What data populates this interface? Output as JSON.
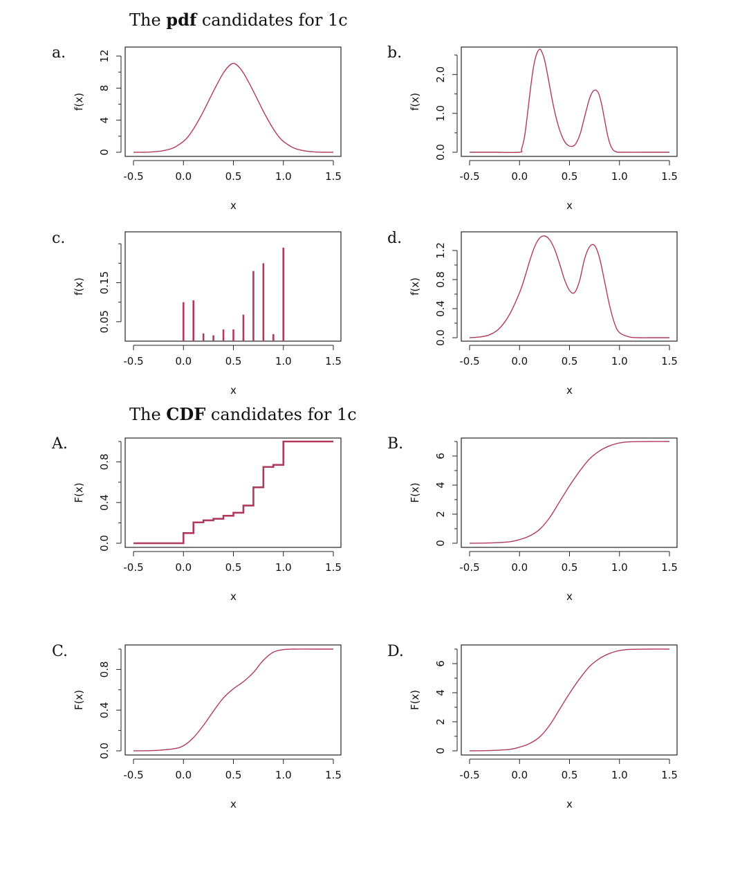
{
  "headings": {
    "pdf": {
      "prefix": "The ",
      "bold": "pdf",
      "suffix": " candidates for 1c"
    },
    "cdf": {
      "prefix": "The ",
      "bold": "CDF",
      "suffix": " candidates for 1c"
    }
  },
  "colors": {
    "curve": "#b03a5b",
    "axis": "#222222"
  },
  "chart_data": [
    {
      "id": "a",
      "letter": "a.",
      "type": "line",
      "xlabel": "x",
      "ylabel": "f(x)",
      "xlim": [
        -0.5,
        1.5
      ],
      "ylim": [
        0,
        12
      ],
      "xticks": [
        -0.5,
        0.0,
        0.5,
        1.0,
        1.5
      ],
      "xtick_labels": [
        "-0.5",
        "0.0",
        "0.5",
        "1.0",
        "1.5"
      ],
      "yticks": [
        0,
        4,
        8,
        12
      ],
      "ytick_labels": [
        "0",
        "4",
        "8",
        "12"
      ],
      "yminor": [
        2,
        6,
        10
      ],
      "x": [
        -0.5,
        -0.4,
        -0.3,
        -0.2,
        -0.1,
        0.0,
        0.05,
        0.1,
        0.15,
        0.2,
        0.25,
        0.3,
        0.35,
        0.4,
        0.45,
        0.5,
        0.55,
        0.6,
        0.65,
        0.7,
        0.75,
        0.8,
        0.85,
        0.9,
        0.95,
        1.0,
        1.1,
        1.2,
        1.3,
        1.4,
        1.5
      ],
      "y": [
        0.0,
        0.0,
        0.05,
        0.2,
        0.55,
        1.35,
        2.0,
        2.9,
        3.95,
        5.1,
        6.35,
        7.6,
        8.8,
        9.9,
        10.7,
        11.1,
        10.7,
        9.9,
        8.8,
        7.6,
        6.35,
        5.1,
        3.95,
        2.9,
        2.0,
        1.35,
        0.55,
        0.2,
        0.05,
        0.0,
        0.0
      ]
    },
    {
      "id": "b",
      "letter": "b.",
      "type": "line",
      "xlabel": "x",
      "ylabel": "f(x)",
      "xlim": [
        -0.5,
        1.5
      ],
      "ylim": [
        0,
        2.6
      ],
      "xticks": [
        -0.5,
        0.0,
        0.5,
        1.0,
        1.5
      ],
      "xtick_labels": [
        "-0.5",
        "0.0",
        "0.5",
        "1.0",
        "1.5"
      ],
      "yticks": [
        0.0,
        1.0,
        2.0
      ],
      "ytick_labels": [
        "0.0",
        "1.0",
        "2.0"
      ],
      "yminor": [
        0.5,
        1.5,
        2.5
      ],
      "x": [
        -0.5,
        -0.25,
        0.0,
        0.02,
        0.05,
        0.08,
        0.11,
        0.14,
        0.17,
        0.2,
        0.22,
        0.25,
        0.28,
        0.31,
        0.34,
        0.37,
        0.4,
        0.43,
        0.46,
        0.49,
        0.52,
        0.55,
        0.58,
        0.61,
        0.64,
        0.67,
        0.7,
        0.73,
        0.76,
        0.79,
        0.82,
        0.85,
        0.88,
        0.91,
        0.94,
        0.97,
        1.0,
        1.25,
        1.5
      ],
      "y": [
        0.0,
        0.0,
        0.0,
        0.08,
        0.4,
        1.0,
        1.65,
        2.2,
        2.52,
        2.65,
        2.6,
        2.38,
        2.0,
        1.58,
        1.18,
        0.85,
        0.58,
        0.38,
        0.24,
        0.17,
        0.15,
        0.18,
        0.3,
        0.5,
        0.8,
        1.1,
        1.38,
        1.55,
        1.6,
        1.52,
        1.25,
        0.85,
        0.45,
        0.18,
        0.05,
        0.01,
        0.0,
        0.0,
        0.0
      ]
    },
    {
      "id": "c",
      "letter": "c.",
      "type": "bar",
      "xlabel": "x",
      "ylabel": "f(x)",
      "xlim": [
        -0.5,
        1.5
      ],
      "ylim": [
        0.0,
        0.27
      ],
      "xticks": [
        -0.5,
        0.0,
        0.5,
        1.0,
        1.5
      ],
      "xtick_labels": [
        "-0.5",
        "0.0",
        "0.5",
        "1.0",
        "1.5"
      ],
      "yticks": [
        0.05,
        0.15
      ],
      "ytick_labels": [
        "0.05",
        "0.15"
      ],
      "yminor": [
        0.1,
        0.2,
        0.25
      ],
      "x": [
        0.0,
        0.1,
        0.2,
        0.3,
        0.4,
        0.5,
        0.6,
        0.7,
        0.8,
        0.9,
        1.0
      ],
      "y": [
        0.1,
        0.105,
        0.02,
        0.015,
        0.03,
        0.03,
        0.068,
        0.18,
        0.2,
        0.018,
        0.24
      ]
    },
    {
      "id": "d",
      "letter": "d.",
      "type": "line",
      "xlabel": "x",
      "ylabel": "f(x)",
      "xlim": [
        -0.5,
        1.5
      ],
      "ylim": [
        0,
        1.4
      ],
      "xticks": [
        -0.5,
        0.0,
        0.5,
        1.0,
        1.5
      ],
      "xtick_labels": [
        "-0.5",
        "0.0",
        "0.5",
        "1.0",
        "1.5"
      ],
      "yticks": [
        0.0,
        0.4,
        0.8,
        1.2
      ],
      "ytick_labels": [
        "0.0",
        "0.4",
        "0.8",
        "1.2"
      ],
      "yminor": [
        0.2,
        0.6,
        1.0
      ],
      "x": [
        -0.5,
        -0.4,
        -0.3,
        -0.2,
        -0.1,
        0.0,
        0.05,
        0.1,
        0.15,
        0.2,
        0.25,
        0.3,
        0.35,
        0.4,
        0.45,
        0.5,
        0.55,
        0.6,
        0.65,
        0.7,
        0.75,
        0.8,
        0.85,
        0.9,
        0.95,
        1.0,
        1.1,
        1.2,
        1.3,
        1.5
      ],
      "y": [
        0.0,
        0.01,
        0.04,
        0.13,
        0.32,
        0.62,
        0.82,
        1.05,
        1.25,
        1.37,
        1.4,
        1.35,
        1.22,
        1.02,
        0.8,
        0.65,
        0.62,
        0.78,
        1.08,
        1.25,
        1.27,
        1.1,
        0.78,
        0.45,
        0.2,
        0.07,
        0.01,
        0.0,
        0.0,
        0.0
      ]
    },
    {
      "id": "A",
      "letter": "A.",
      "type": "step",
      "xlabel": "x",
      "ylabel": "F(x)",
      "xlim": [
        -0.5,
        1.5
      ],
      "ylim": [
        0,
        1.0
      ],
      "xticks": [
        -0.5,
        0.0,
        0.5,
        1.0,
        1.5
      ],
      "xtick_labels": [
        "-0.5",
        "0.0",
        "0.5",
        "1.0",
        "1.5"
      ],
      "yticks": [
        0.0,
        0.4,
        0.8
      ],
      "ytick_labels": [
        "0.0",
        "0.4",
        "0.8"
      ],
      "yminor": [
        0.2,
        0.6,
        1.0
      ],
      "x": [
        -0.5,
        0.0,
        0.1,
        0.2,
        0.3,
        0.4,
        0.5,
        0.6,
        0.7,
        0.8,
        0.9,
        1.0,
        1.5
      ],
      "y": [
        0.0,
        0.1,
        0.205,
        0.225,
        0.24,
        0.27,
        0.3,
        0.37,
        0.55,
        0.75,
        0.77,
        1.0,
        1.0
      ]
    },
    {
      "id": "B",
      "letter": "B.",
      "type": "line",
      "xlabel": "x",
      "ylabel": "F(x)",
      "xlim": [
        -0.5,
        1.5
      ],
      "ylim": [
        0,
        7
      ],
      "xticks": [
        -0.5,
        0.0,
        0.5,
        1.0,
        1.5
      ],
      "xtick_labels": [
        "-0.5",
        "0.0",
        "0.5",
        "1.0",
        "1.5"
      ],
      "yticks": [
        0,
        2,
        4,
        6
      ],
      "ytick_labels": [
        "0",
        "2",
        "4",
        "6"
      ],
      "yminor": [
        1,
        3,
        5,
        7
      ],
      "x": [
        -0.5,
        -0.3,
        -0.1,
        0.0,
        0.1,
        0.2,
        0.3,
        0.4,
        0.5,
        0.6,
        0.7,
        0.8,
        0.9,
        1.0,
        1.1,
        1.3,
        1.5
      ],
      "y": [
        0.0,
        0.02,
        0.1,
        0.25,
        0.5,
        0.95,
        1.75,
        2.85,
        3.95,
        4.95,
        5.8,
        6.35,
        6.7,
        6.9,
        6.98,
        7.0,
        7.0
      ]
    },
    {
      "id": "C",
      "letter": "C.",
      "type": "line",
      "xlabel": "x",
      "ylabel": "F(x)",
      "xlim": [
        -0.5,
        1.5
      ],
      "ylim": [
        0,
        1.0
      ],
      "xticks": [
        -0.5,
        0.0,
        0.5,
        1.0,
        1.5
      ],
      "xtick_labels": [
        "-0.5",
        "0.0",
        "0.5",
        "1.0",
        "1.5"
      ],
      "yticks": [
        0.0,
        0.4,
        0.8
      ],
      "ytick_labels": [
        "0.0",
        "0.4",
        "0.8"
      ],
      "yminor": [
        0.2,
        0.6,
        1.0
      ],
      "x": [
        -0.5,
        -0.3,
        -0.1,
        0.0,
        0.1,
        0.2,
        0.3,
        0.4,
        0.5,
        0.6,
        0.7,
        0.8,
        0.9,
        1.0,
        1.1,
        1.3,
        1.5
      ],
      "y": [
        0.0,
        0.003,
        0.02,
        0.05,
        0.13,
        0.25,
        0.39,
        0.52,
        0.61,
        0.68,
        0.77,
        0.89,
        0.97,
        0.995,
        1.0,
        1.0,
        1.0
      ]
    },
    {
      "id": "D",
      "letter": "D.",
      "type": "line",
      "xlabel": "x",
      "ylabel": "F(x)",
      "xlim": [
        -0.5,
        1.5
      ],
      "ylim": [
        0,
        7
      ],
      "xticks": [
        -0.5,
        0.0,
        0.5,
        1.0,
        1.5
      ],
      "xtick_labels": [
        "-0.5",
        "0.0",
        "0.5",
        "1.0",
        "1.5"
      ],
      "yticks": [
        0,
        2,
        4,
        6
      ],
      "ytick_labels": [
        "0",
        "2",
        "4",
        "6"
      ],
      "yminor": [
        1,
        3,
        5,
        7
      ],
      "x": [
        -0.5,
        -0.3,
        -0.1,
        0.0,
        0.1,
        0.2,
        0.3,
        0.4,
        0.5,
        0.6,
        0.7,
        0.8,
        0.9,
        1.0,
        1.1,
        1.3,
        1.5
      ],
      "y": [
        0.0,
        0.02,
        0.1,
        0.25,
        0.5,
        0.95,
        1.75,
        2.85,
        3.95,
        4.95,
        5.8,
        6.35,
        6.7,
        6.9,
        6.98,
        7.0,
        7.0
      ]
    }
  ]
}
